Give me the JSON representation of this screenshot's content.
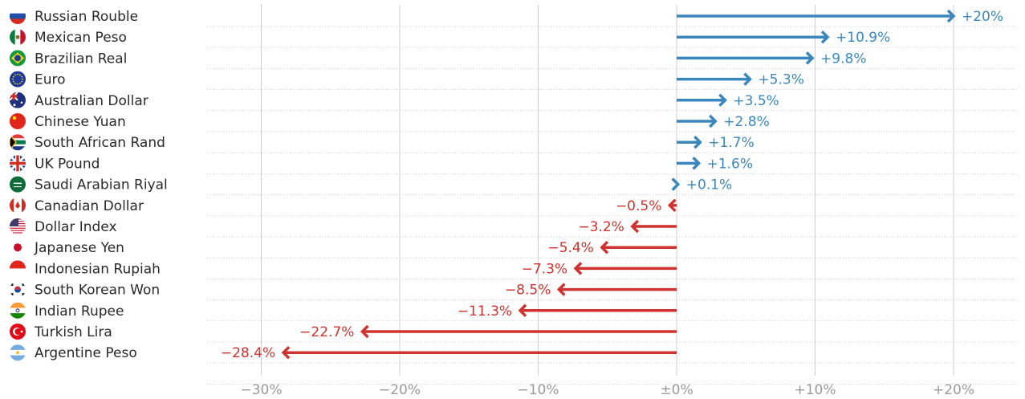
{
  "chart_data": {
    "type": "bar",
    "categories": [
      "Russian Rouble",
      "Mexican Peso",
      "Brazilian Real",
      "Euro",
      "Australian Dollar",
      "Chinese Yuan",
      "South African Rand",
      "UK Pound",
      "Saudi Arabian Riyal",
      "Canadian Dollar",
      "Dollar Index",
      "Japanese Yen",
      "Indonesian Rupiah",
      "South Korean Won",
      "Indian Rupee",
      "Turkish Lira",
      "Argentine Peso"
    ],
    "values": [
      20,
      10.9,
      9.8,
      5.3,
      3.5,
      2.8,
      1.7,
      1.6,
      0.1,
      -0.5,
      -3.2,
      -5.4,
      -7.3,
      -8.5,
      -11.3,
      -22.7,
      -28.4
    ],
    "value_labels": [
      "+20%",
      "+10.9%",
      "+9.8%",
      "+5.3%",
      "+3.5%",
      "+2.8%",
      "+1.7%",
      "+1.6%",
      "+0.1%",
      "−0.5%",
      "−3.2%",
      "−5.4%",
      "−7.3%",
      "−8.5%",
      "−11.3%",
      "−22.7%",
      "−28.4%"
    ],
    "flag_icons": [
      "russia-flag-icon",
      "mexico-flag-icon",
      "brazil-flag-icon",
      "eu-flag-icon",
      "australia-flag-icon",
      "china-flag-icon",
      "south-africa-flag-icon",
      "uk-flag-icon",
      "saudi-arabia-flag-icon",
      "canada-flag-icon",
      "usa-flag-icon",
      "japan-flag-icon",
      "indonesia-flag-icon",
      "south-korea-flag-icon",
      "india-flag-icon",
      "turkey-flag-icon",
      "argentina-flag-icon"
    ],
    "xlim": [
      -30,
      20
    ],
    "xticks": [
      -30,
      -20,
      -10,
      0,
      10,
      20
    ],
    "xtick_labels": [
      "−30%",
      "−20%",
      "−10%",
      "±0%",
      "+10%",
      "+20%"
    ],
    "grid": true,
    "orientation": "horizontal",
    "colors": {
      "positive": "#3a87bd",
      "negative": "#d0322f",
      "grid": "#cfcfcf",
      "label": "#2a2a2a",
      "tick": "#9a9a9a"
    }
  }
}
